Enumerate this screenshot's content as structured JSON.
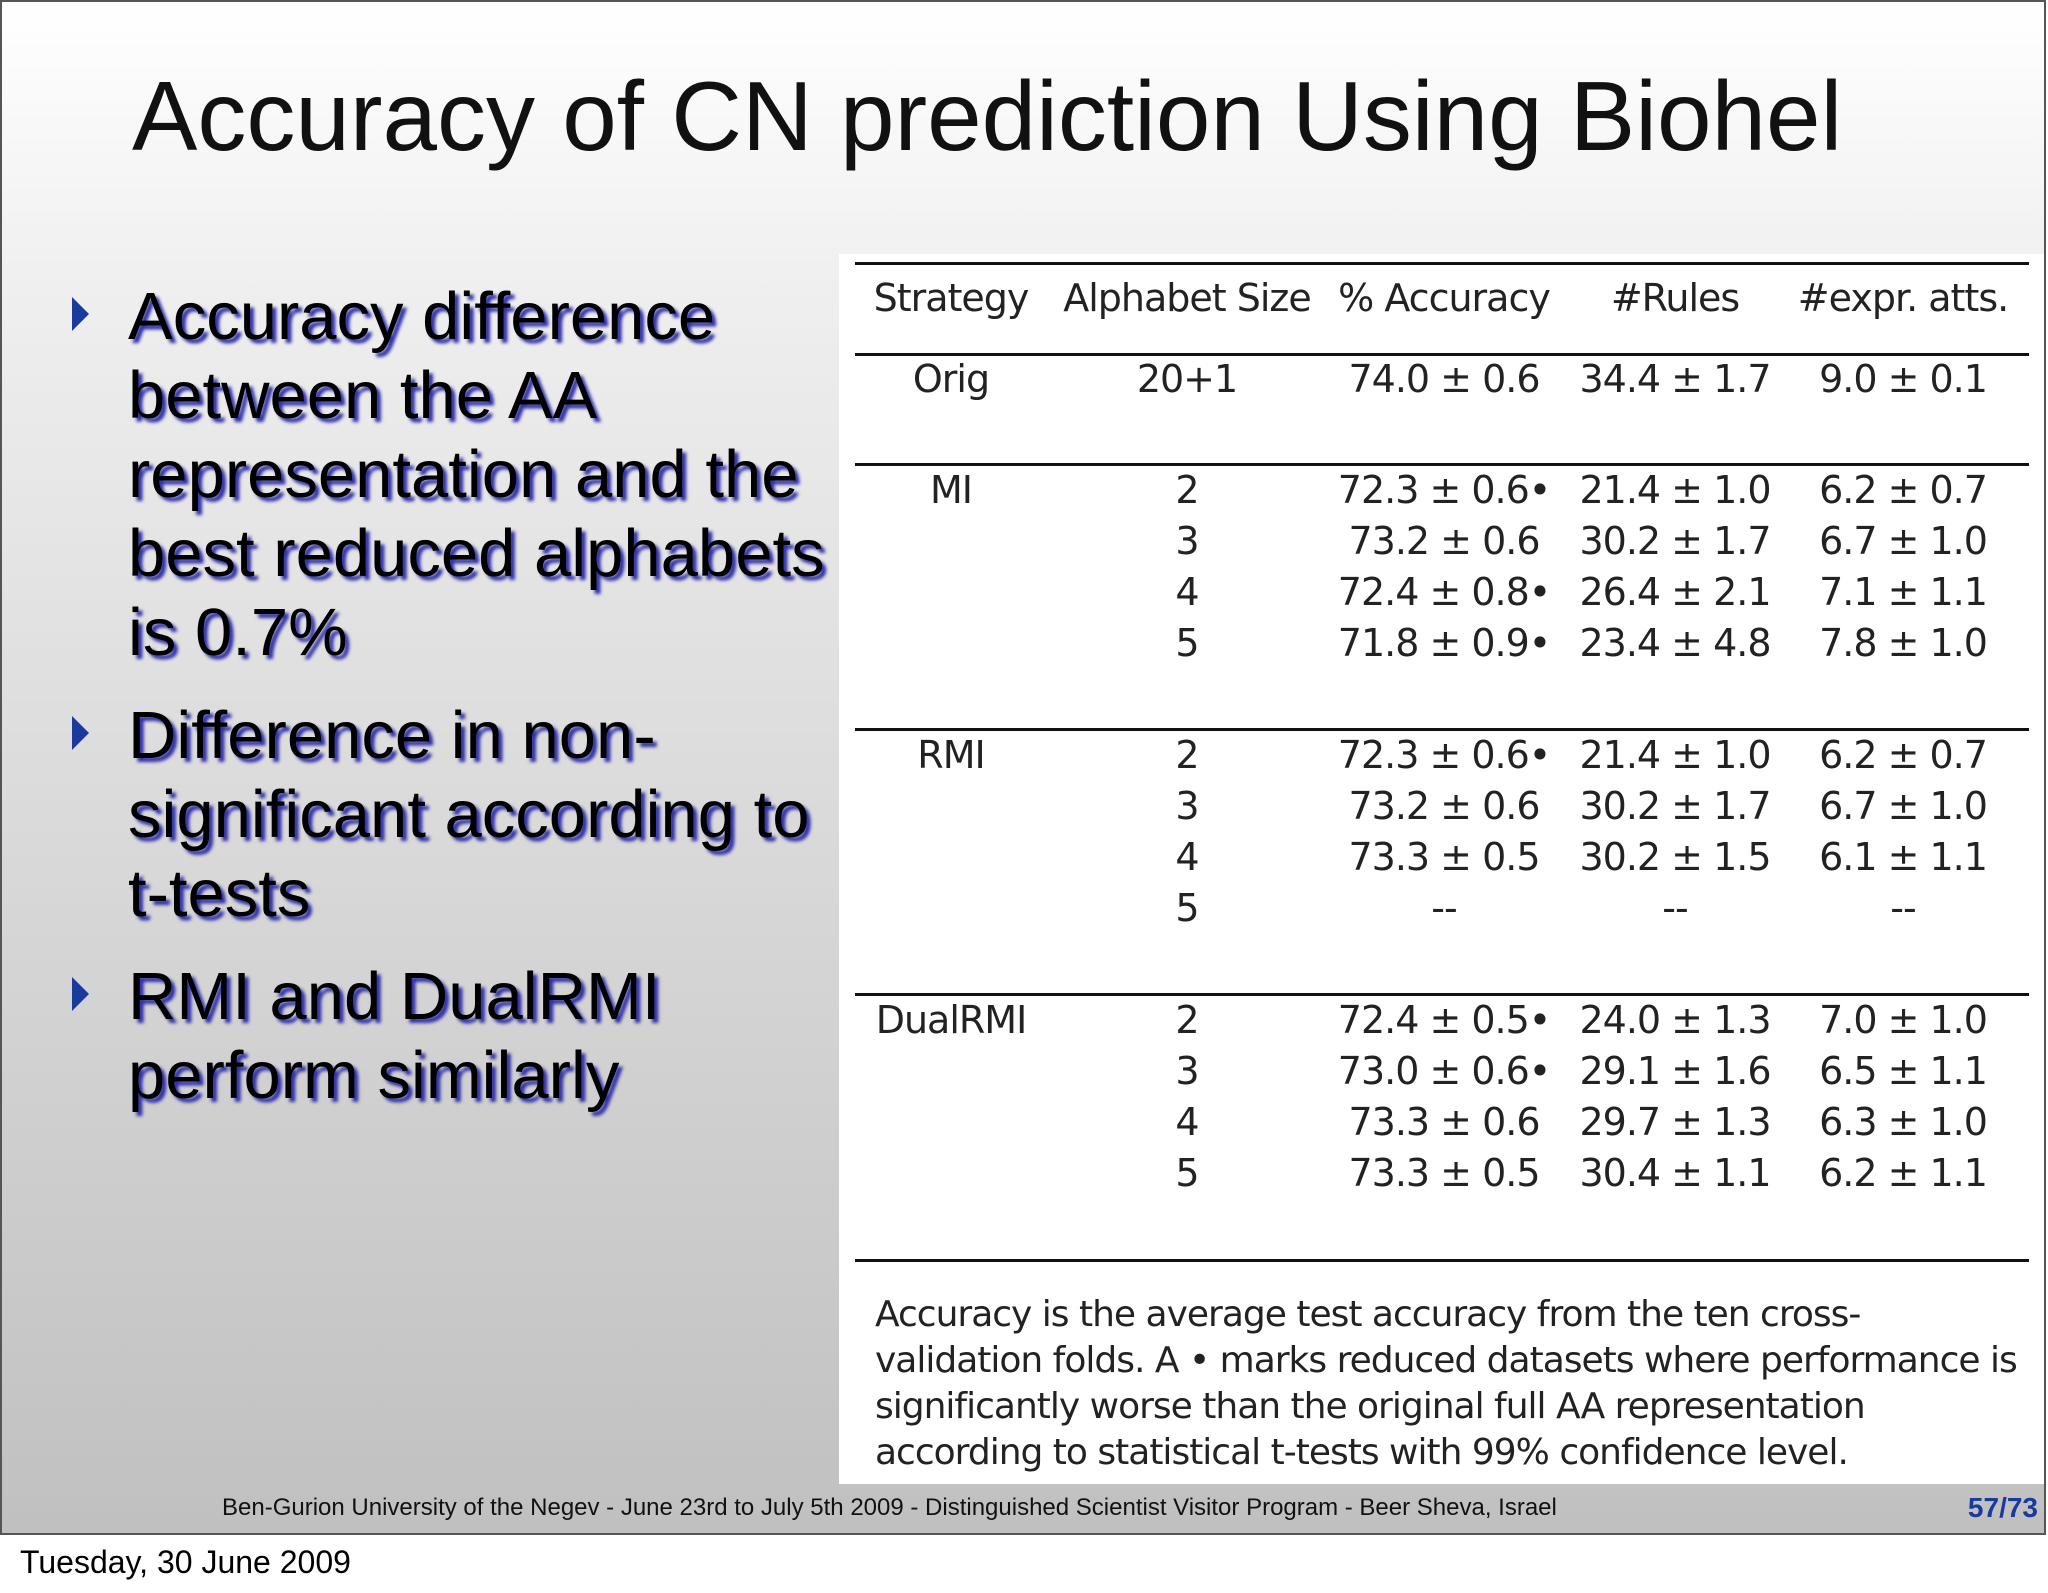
{
  "slide": {
    "title": "Accuracy of CN prediction Using Biohel",
    "bullets": [
      "Accuracy difference between the AA representation and the best reduced alphabets is 0.7%",
      "Difference in non-significant according to t-tests",
      "RMI and DualRMI perform similarly"
    ],
    "footer": "Ben-Gurion University of the Negev - June 23rd to July 5th 2009 -  Distinguished Scientist Visitor Program - Beer Sheva, Israel",
    "page_number": "57/73",
    "accent_color": "#1a3a9e"
  },
  "table": {
    "headers": [
      "Strategy",
      "Alphabet Size",
      "% Accuracy",
      "#Rules",
      "#expr. atts."
    ],
    "groups": [
      {
        "strategy": "Orig",
        "rows": [
          [
            "20+1",
            "74.0 ± 0.6",
            "34.4 ± 1.7",
            "9.0 ± 0.1"
          ]
        ]
      },
      {
        "strategy": "MI",
        "rows": [
          [
            "2",
            "72.3 ± 0.6•",
            "21.4 ± 1.0",
            "6.2 ± 0.7"
          ],
          [
            "3",
            "73.2 ± 0.6",
            "30.2 ± 1.7",
            "6.7 ± 1.0"
          ],
          [
            "4",
            "72.4 ± 0.8•",
            "26.4 ± 2.1",
            "7.1 ± 1.1"
          ],
          [
            "5",
            "71.8 ± 0.9•",
            "23.4 ± 4.8",
            "7.8 ± 1.0"
          ]
        ]
      },
      {
        "strategy": "RMI",
        "rows": [
          [
            "2",
            "72.3 ± 0.6•",
            "21.4 ± 1.0",
            "6.2 ± 0.7"
          ],
          [
            "3",
            "73.2 ± 0.6",
            "30.2 ± 1.7",
            "6.7 ± 1.0"
          ],
          [
            "4",
            "73.3 ± 0.5",
            "30.2 ± 1.5",
            "6.1 ± 1.1"
          ],
          [
            "5",
            "--",
            "--",
            "--"
          ]
        ]
      },
      {
        "strategy": "DualRMI",
        "rows": [
          [
            "2",
            "72.4 ± 0.5•",
            "24.0 ± 1.3",
            "7.0 ± 1.0"
          ],
          [
            "3",
            "73.0 ± 0.6•",
            "29.1 ± 1.6",
            "6.5 ± 1.1"
          ],
          [
            "4",
            "73.3 ± 0.6",
            "29.7 ± 1.3",
            "6.3 ± 1.0"
          ],
          [
            "5",
            "73.3 ± 0.5",
            "30.4 ± 1.1",
            "6.2 ± 1.1"
          ]
        ]
      }
    ],
    "caption": "Accuracy is the average test accuracy from the ten cross-validation folds. A • marks reduced datasets where performance is significantly worse than the original full AA representation according to statistical t-tests with 99% confidence level."
  },
  "date_label": "Tuesday, 30 June 2009"
}
